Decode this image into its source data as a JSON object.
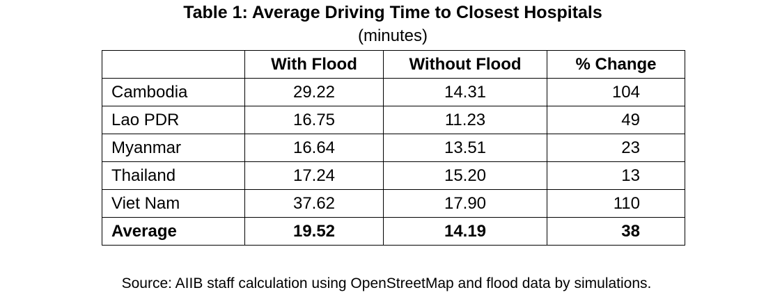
{
  "title": "Table 1: Average Driving Time to Closest Hospitals",
  "subtitle": "(minutes)",
  "columns": [
    "",
    "With Flood",
    "Without Flood",
    "% Change"
  ],
  "rows": [
    {
      "country": "Cambodia",
      "with_flood": "29.22",
      "without_flood": "14.31",
      "pct_change": "104"
    },
    {
      "country": "Lao PDR",
      "with_flood": "16.75",
      "without_flood": "11.23",
      "pct_change": "49"
    },
    {
      "country": "Myanmar",
      "with_flood": "16.64",
      "without_flood": "13.51",
      "pct_change": "23"
    },
    {
      "country": "Thailand",
      "with_flood": "17.24",
      "without_flood": "15.20",
      "pct_change": "13"
    },
    {
      "country": "Viet Nam",
      "with_flood": "37.62",
      "without_flood": "17.90",
      "pct_change": "110"
    }
  ],
  "average": {
    "label": "Average",
    "with_flood": "19.52",
    "without_flood": "14.19",
    "pct_change": "38"
  },
  "source": "Source: AIIB staff calculation using OpenStreetMap and flood data by simulations."
}
